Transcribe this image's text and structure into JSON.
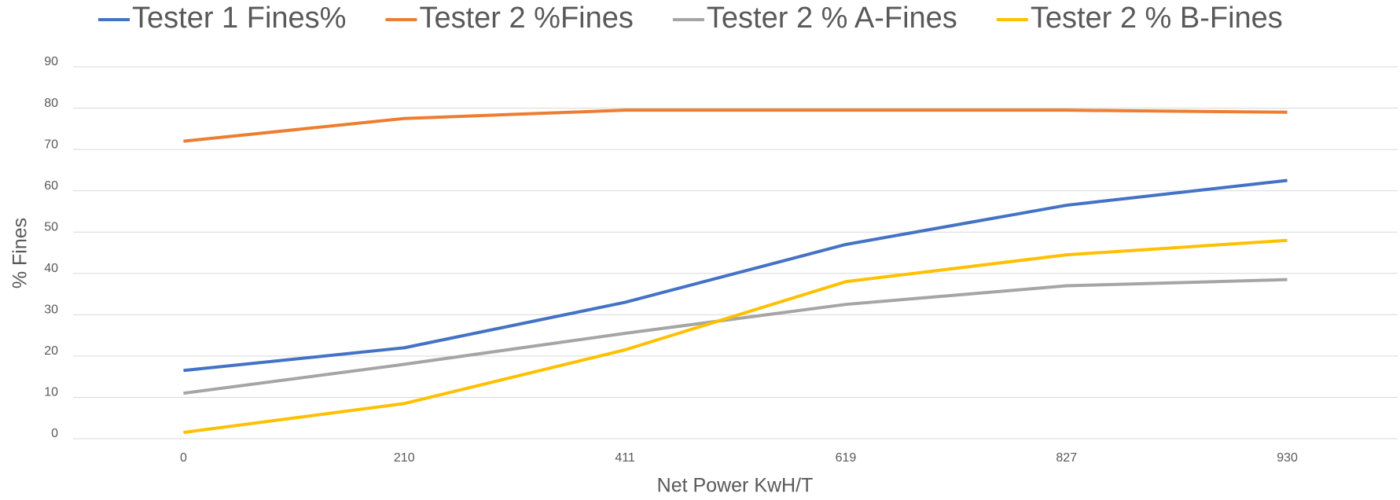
{
  "chart_data": {
    "type": "line",
    "categories": [
      "0",
      "210",
      "411",
      "619",
      "827",
      "930"
    ],
    "series": [
      {
        "name": "Tester 1 Fines%",
        "color": "#4472c4",
        "values": [
          16.5,
          22,
          33,
          47,
          56.5,
          62.5
        ]
      },
      {
        "name": "Tester 2 %Fines",
        "color": "#ed7d31",
        "values": [
          72,
          77.5,
          79.5,
          79.5,
          79.5,
          79
        ]
      },
      {
        "name": "Tester 2 % A-Fines",
        "color": "#a5a5a5",
        "values": [
          11,
          18,
          25.5,
          32.5,
          37,
          38.5
        ]
      },
      {
        "name": "Tester 2 % B-Fines",
        "color": "#ffc000",
        "values": [
          1.5,
          8.5,
          21.5,
          38,
          44.5,
          48
        ]
      }
    ],
    "x_label": "Net Power KwH/T",
    "y_label": "% Fines",
    "ylim": [
      0,
      90
    ],
    "yticks": [
      0,
      10,
      20,
      30,
      40,
      50,
      60,
      70,
      80,
      90
    ],
    "grid": true,
    "legend": "top"
  }
}
